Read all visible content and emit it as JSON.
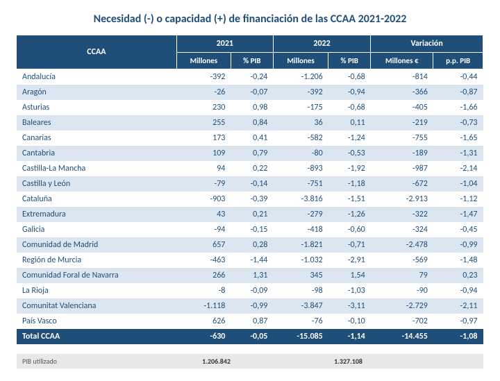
{
  "title": "Necesidad (-) o capacidad (+) de financiación de las CCAA 2021-2022",
  "colors": {
    "header_bg": "#1f4e79",
    "header_fg": "#ffffff",
    "row_alt_bg": "#dce6f1",
    "text": "#1f4e79"
  },
  "header": {
    "ccaa": "CCAA",
    "y2021": "2021",
    "y2022": "2022",
    "var": "Variación",
    "millones": "Millones",
    "pct_pib": "% PIB",
    "millones_eur": "Millones €",
    "pp_pib": "p.p. PIB"
  },
  "rows": [
    {
      "name": "Andalucía",
      "m21": "-392",
      "p21": "-0,24",
      "m22": "-1.206",
      "p22": "-0,68",
      "vm": "-814",
      "vp": "-0,44"
    },
    {
      "name": "Aragón",
      "m21": "-26",
      "p21": "-0,07",
      "m22": "-392",
      "p22": "-0,94",
      "vm": "-366",
      "vp": "-0,87"
    },
    {
      "name": "Asturias",
      "m21": "230",
      "p21": "0,98",
      "m22": "-175",
      "p22": "-0,68",
      "vm": "-405",
      "vp": "-1,66"
    },
    {
      "name": "Baleares",
      "m21": "255",
      "p21": "0,84",
      "m22": "36",
      "p22": "0,11",
      "vm": "-219",
      "vp": "-0,73"
    },
    {
      "name": "Canarias",
      "m21": "173",
      "p21": "0,41",
      "m22": "-582",
      "p22": "-1,24",
      "vm": "-755",
      "vp": "-1,65"
    },
    {
      "name": "Cantabria",
      "m21": "109",
      "p21": "0,79",
      "m22": "-80",
      "p22": "-0,53",
      "vm": "-189",
      "vp": "-1,31"
    },
    {
      "name": "Castilla-La Mancha",
      "m21": "94",
      "p21": "0,22",
      "m22": "-893",
      "p22": "-1,92",
      "vm": "-987",
      "vp": "-2,14"
    },
    {
      "name": "Castilla y León",
      "m21": "-79",
      "p21": "-0,14",
      "m22": "-751",
      "p22": "-1,18",
      "vm": "-672",
      "vp": "-1,04"
    },
    {
      "name": "Cataluña",
      "m21": "-903",
      "p21": "-0,39",
      "m22": "-3.816",
      "p22": "-1,51",
      "vm": "-2.913",
      "vp": "-1,12"
    },
    {
      "name": "Extremadura",
      "m21": "43",
      "p21": "0,21",
      "m22": "-279",
      "p22": "-1,26",
      "vm": "-322",
      "vp": "-1,47"
    },
    {
      "name": "Galicia",
      "m21": "-94",
      "p21": "-0,15",
      "m22": "-418",
      "p22": "-0,60",
      "vm": "-324",
      "vp": "-0,45"
    },
    {
      "name": "Comunidad de Madrid",
      "m21": "657",
      "p21": "0,28",
      "m22": "-1.821",
      "p22": "-0,71",
      "vm": "-2.478",
      "vp": "-0,99"
    },
    {
      "name": "Región de Murcia",
      "m21": "-463",
      "p21": "-1,44",
      "m22": "-1.032",
      "p22": "-2,91",
      "vm": "-569",
      "vp": "-1,48"
    },
    {
      "name": "Comunidad Foral de Navarra",
      "m21": "266",
      "p21": "1,31",
      "m22": "345",
      "p22": "1,54",
      "vm": "79",
      "vp": "0,23"
    },
    {
      "name": "La Rioja",
      "m21": "-8",
      "p21": "-0,09",
      "m22": "-98",
      "p22": "-1,03",
      "vm": "-90",
      "vp": "-0,94"
    },
    {
      "name": "Comunitat Valenciana",
      "m21": "-1.118",
      "p21": "-0,99",
      "m22": "-3.847",
      "p22": "-3,11",
      "vm": "-2.729",
      "vp": "-2,11"
    },
    {
      "name": "País Vasco",
      "m21": "626",
      "p21": "0,87",
      "m22": "-76",
      "p22": "-0,10",
      "vm": "-702",
      "vp": "-0,97"
    }
  ],
  "total": {
    "name": "Total CCAA",
    "m21": "-630",
    "p21": "-0,05",
    "m22": "-15.085",
    "p22": "-1,14",
    "vm": "-14.455",
    "vp": "-1,08"
  },
  "footnote": {
    "label": "PIB utilizado",
    "v1": "1.206.842",
    "v2": "1.327.108"
  }
}
